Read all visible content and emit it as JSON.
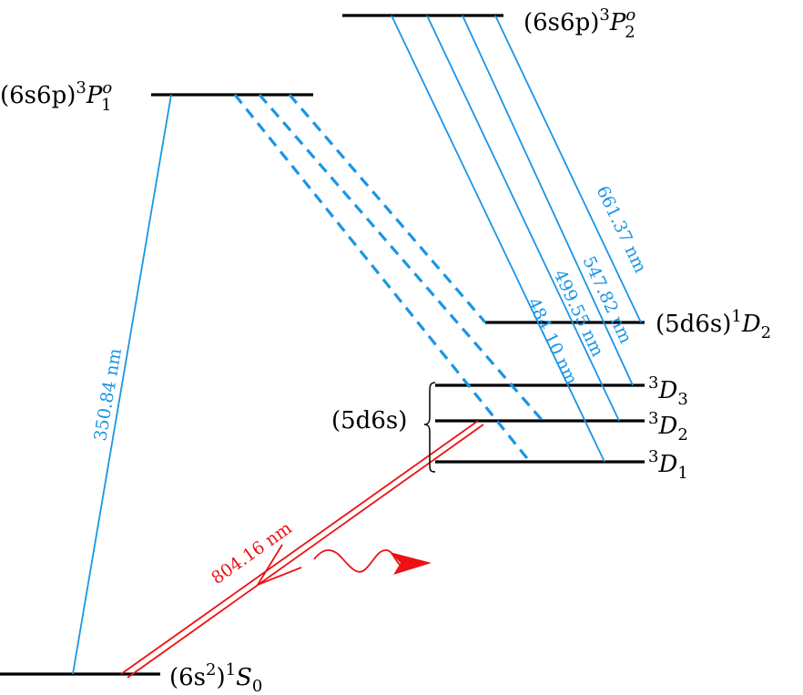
{
  "colors": {
    "levels": "#000000",
    "visible_transitions": "#1a95e6",
    "laser_transition": "#ee1111"
  },
  "levels": {
    "p2": {
      "config": "(6s6p)",
      "mult": "3",
      "term": "P",
      "parity": "o",
      "j": "2"
    },
    "p1": {
      "config": "(6s6p)",
      "mult": "3",
      "term": "P",
      "parity": "o",
      "j": "1"
    },
    "d2_singlet": {
      "config": "(5d6s)",
      "mult": "1",
      "term": "D",
      "j": "2"
    },
    "triplet_group_config": "(5d6s)",
    "d3": {
      "mult": "3",
      "term": "D",
      "j": "3"
    },
    "d2": {
      "mult": "3",
      "term": "D",
      "j": "2"
    },
    "d1": {
      "mult": "3",
      "term": "D",
      "j": "1"
    },
    "ground": {
      "config_open": "(6s",
      "config_exp": "2",
      "config_close": ")",
      "mult": "1",
      "term": "S",
      "j": "0"
    }
  },
  "transitions": {
    "t350": "350.84 nm",
    "t484": "484.10 nm",
    "t499": "499.55 nm",
    "t547": "547.82 nm",
    "t661": "661.37 nm",
    "t804": "804.16 nm"
  }
}
